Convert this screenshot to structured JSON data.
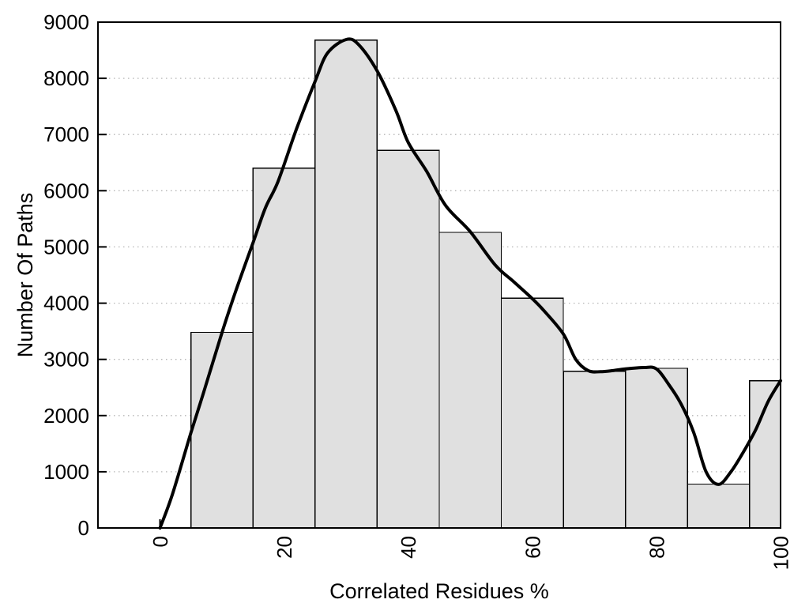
{
  "chart_data": {
    "type": "bar",
    "subtype": "histogram-with-smoothed-curve",
    "title": "",
    "xlabel": "Correlated Residues %",
    "ylabel": "Number Of Paths",
    "xlim": [
      -10,
      100
    ],
    "ylim": [
      0,
      9000
    ],
    "x_ticks": [
      0,
      20,
      40,
      60,
      80,
      100
    ],
    "y_ticks": [
      0,
      1000,
      2000,
      3000,
      4000,
      5000,
      6000,
      7000,
      8000,
      9000
    ],
    "grid": {
      "horizontal_dotted": true,
      "vertical": false
    },
    "legend": "none",
    "bars": [
      {
        "range": [
          5,
          15
        ],
        "value": 3480
      },
      {
        "range": [
          15,
          25
        ],
        "value": 6400
      },
      {
        "range": [
          25,
          35
        ],
        "value": 8680
      },
      {
        "range": [
          35,
          45
        ],
        "value": 6720
      },
      {
        "range": [
          45,
          55
        ],
        "value": 5260
      },
      {
        "range": [
          55,
          65
        ],
        "value": 4090
      },
      {
        "range": [
          65,
          75
        ],
        "value": 2790
      },
      {
        "range": [
          75,
          85
        ],
        "value": 2840
      },
      {
        "range": [
          85,
          95
        ],
        "value": 780
      },
      {
        "range": [
          95,
          100
        ],
        "value": 2620
      }
    ],
    "curve": {
      "name": "smoothed-frequency-curve",
      "points": [
        [
          0,
          0
        ],
        [
          2,
          600
        ],
        [
          5,
          1700
        ],
        [
          7,
          2400
        ],
        [
          10,
          3480
        ],
        [
          12,
          4150
        ],
        [
          15,
          5080
        ],
        [
          17,
          5700
        ],
        [
          19,
          6160
        ],
        [
          22,
          7100
        ],
        [
          25,
          7950
        ],
        [
          27,
          8450
        ],
        [
          30,
          8690
        ],
        [
          32,
          8600
        ],
        [
          35,
          8130
        ],
        [
          38,
          7430
        ],
        [
          40,
          6860
        ],
        [
          43,
          6340
        ],
        [
          46,
          5740
        ],
        [
          50,
          5270
        ],
        [
          54,
          4680
        ],
        [
          57,
          4380
        ],
        [
          60,
          4080
        ],
        [
          62,
          3850
        ],
        [
          65,
          3450
        ],
        [
          67,
          3000
        ],
        [
          69,
          2800
        ],
        [
          71,
          2780
        ],
        [
          73,
          2800
        ],
        [
          75,
          2830
        ],
        [
          78,
          2855
        ],
        [
          80,
          2830
        ],
        [
          82,
          2550
        ],
        [
          84,
          2200
        ],
        [
          86,
          1700
        ],
        [
          88,
          1000
        ],
        [
          90,
          775
        ],
        [
          92,
          1000
        ],
        [
          94,
          1350
        ],
        [
          96,
          1750
        ],
        [
          98,
          2250
        ],
        [
          100,
          2620
        ]
      ]
    },
    "colors": {
      "bar_fill": "#e0e0e0",
      "bar_border": "#000000",
      "curve": "#000000",
      "grid": "#b5b5b5",
      "axis": "#000000",
      "text": "#000000",
      "background": "#ffffff"
    }
  }
}
